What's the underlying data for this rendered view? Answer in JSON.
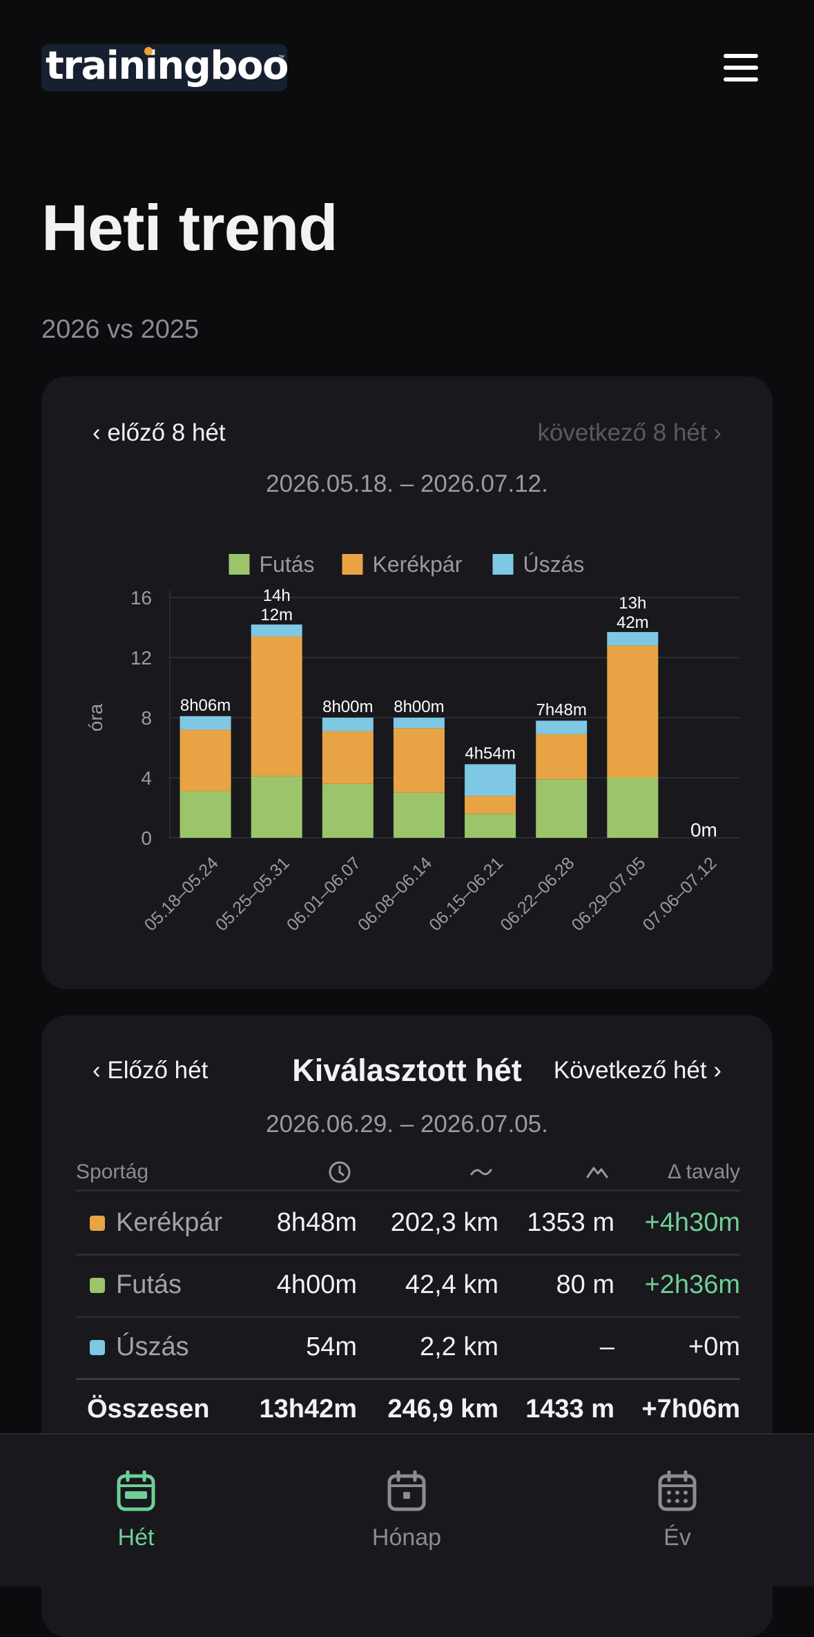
{
  "app": {
    "logo_text": "trainingboo",
    "logo_tm": "™",
    "page_title": "Heti trend",
    "subtitle": "2026 vs 2025"
  },
  "colors": {
    "running": "#9cc46a",
    "cycling": "#e8a444",
    "swimming": "#7ec8e3",
    "accent": "#6fcf97",
    "background": "#0c0c0f",
    "card": "#18181d"
  },
  "trend_card": {
    "prev_label": "‹ előző 8 hét",
    "next_label": "következő 8 hét ›",
    "range": "2026.05.18. – 2026.07.12."
  },
  "chart_data": {
    "type": "bar",
    "stacked": true,
    "ylabel": "óra",
    "ylim": [
      0,
      16
    ],
    "yticks": [
      0,
      4,
      8,
      12,
      16
    ],
    "grid": true,
    "legend_position": "top",
    "categories": [
      "05.18–05.24",
      "05.25–05.31",
      "06.01–06.07",
      "06.08–06.14",
      "06.15–06.21",
      "06.22–06.28",
      "06.29–07.05",
      "07.06–07.12"
    ],
    "series": [
      {
        "name": "Futás",
        "color": "#9cc46a",
        "values": [
          3.1,
          4.1,
          3.6,
          3.0,
          1.6,
          3.9,
          4.0,
          0
        ]
      },
      {
        "name": "Kerékpár",
        "color": "#e8a444",
        "values": [
          4.1,
          9.3,
          3.5,
          4.3,
          1.2,
          3.0,
          8.8,
          0
        ]
      },
      {
        "name": "Úszás",
        "color": "#7ec8e3",
        "values": [
          0.9,
          0.8,
          0.9,
          0.7,
          2.1,
          0.9,
          0.9,
          0
        ]
      }
    ],
    "total_labels": [
      "8h06m",
      "14h 12m",
      "8h00m",
      "8h00m",
      "4h54m",
      "7h48m",
      "13h 42m",
      "0m"
    ]
  },
  "week_card": {
    "prev_label": "‹ Előző hét",
    "title": "Kiválasztott hét",
    "next_label": "Következő hét ›",
    "range": "2026.06.29. – 2026.07.05.",
    "headers": {
      "sport": "Sportág",
      "time_icon": "clock-icon",
      "distance_icon": "wave-icon",
      "elevation_icon": "mountain-icon",
      "delta": "Δ tavaly"
    },
    "rows": [
      {
        "sport": "Kerékpár",
        "color": "#e8a444",
        "time": "8h48m",
        "distance": "202,3 km",
        "elevation": "1353 m",
        "delta": "+4h30m",
        "delta_color": "#6fcf97"
      },
      {
        "sport": "Futás",
        "color": "#9cc46a",
        "time": "4h00m",
        "distance": "42,4 km",
        "elevation": "80 m",
        "delta": "+2h36m",
        "delta_color": "#6fcf97"
      },
      {
        "sport": "Úszás",
        "color": "#7ec8e3",
        "time": "54m",
        "distance": "2,2 km",
        "elevation": "–",
        "delta": "+0m",
        "delta_color": "#f2f2f5"
      }
    ],
    "total": {
      "label": "Összesen",
      "time": "13h42m",
      "distance": "246,9 km",
      "elevation": "1433 m",
      "delta": "+7h06m"
    }
  },
  "bottom_nav": {
    "tabs": [
      {
        "label": "Hét",
        "icon": "calendar-week-icon",
        "active": true
      },
      {
        "label": "Hónap",
        "icon": "calendar-month-icon",
        "active": false
      },
      {
        "label": "Év",
        "icon": "calendar-year-icon",
        "active": false
      }
    ]
  }
}
